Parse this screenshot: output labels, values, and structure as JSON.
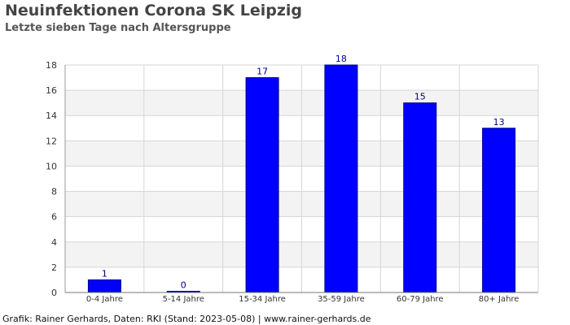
{
  "header": {
    "title": "Neuinfektionen Corona SK Leipzig",
    "subtitle": "Letzte sieben Tage nach Altersgruppe"
  },
  "footer": {
    "credit": "Grafik: Rainer Gerhards, Daten: RKI (Stand: 2023-05-08) | www.rainer-gerhards.de"
  },
  "chart_data": {
    "type": "bar",
    "title": "Neuinfektionen Corona SK Leipzig",
    "subtitle": "Letzte sieben Tage nach Altersgruppe",
    "categories": [
      "0-4 Jahre",
      "5-14 Jahre",
      "15-34 Jahre",
      "35-59 Jahre",
      "60-79 Jahre",
      "80+ Jahre"
    ],
    "values": [
      1,
      0,
      17,
      18,
      15,
      13
    ],
    "data_labels": [
      "1",
      "0",
      "17",
      "18",
      "15",
      "13"
    ],
    "xlabel": "",
    "ylabel": "",
    "ylim": [
      0,
      18
    ],
    "yticks": [
      0,
      2,
      4,
      6,
      8,
      10,
      12,
      14,
      16,
      18
    ],
    "grid": true,
    "legend": "none",
    "colors": {
      "bar": "#0000ff",
      "bar_edge": "#00008b",
      "label": "#000080",
      "band": "#f3f3f3",
      "grid": "#d6d6d6"
    }
  }
}
